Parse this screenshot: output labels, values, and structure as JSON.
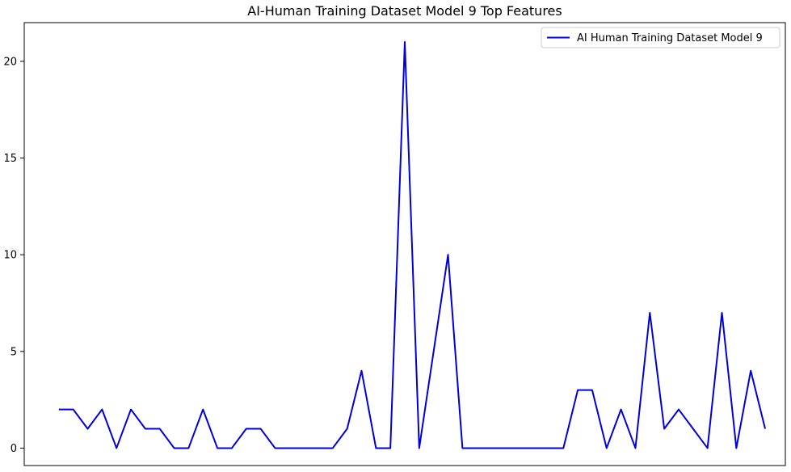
{
  "chart_data": {
    "type": "line",
    "title": "AI-Human Training Dataset Model 9 Top Features",
    "xlabel": "",
    "ylabel": "",
    "x_ticks_visible": false,
    "ylim": [
      -0.9,
      22
    ],
    "xlim": [
      -2.4,
      50.4
    ],
    "y_ticks": [
      0,
      5,
      10,
      15,
      20
    ],
    "grid": false,
    "legend_position": "top-right",
    "series": [
      {
        "name": "AI Human Training Dataset Model 9",
        "color": "#0000dd",
        "values": [
          2,
          2,
          1,
          2,
          0,
          2,
          1,
          1,
          0,
          0,
          2,
          0,
          0,
          1,
          1,
          0,
          0,
          0,
          0,
          0,
          1,
          4,
          0,
          0,
          21,
          0,
          5,
          10,
          0,
          0,
          0,
          0,
          0,
          0,
          0,
          0,
          3,
          3,
          0,
          2,
          0,
          7,
          1,
          2,
          1,
          0,
          7,
          0,
          4,
          1
        ]
      }
    ]
  }
}
